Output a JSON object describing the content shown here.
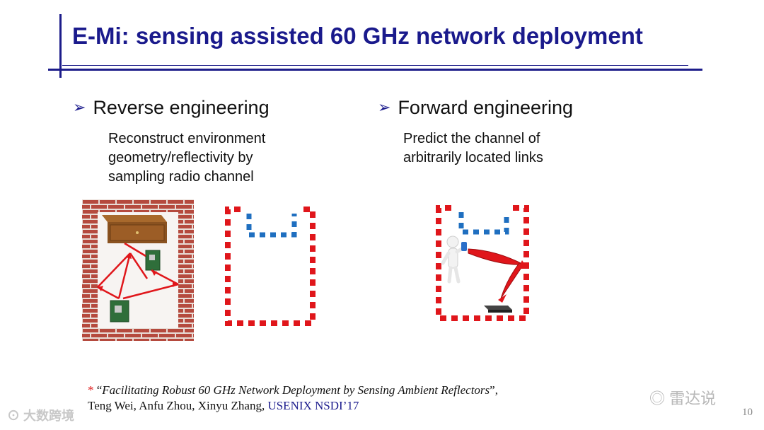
{
  "slide": {
    "title": "E-Mi: sensing assisted 60 GHz network deployment",
    "page_number": "10"
  },
  "left_column": {
    "heading": "Reverse engineering",
    "description": [
      "Reconstruct environment",
      "geometry/reflectivity by",
      "sampling radio channel"
    ]
  },
  "right_column": {
    "heading": "Forward engineering",
    "description": [
      "Predict the channel of",
      "arbitrarily located links"
    ]
  },
  "reference": {
    "marker": "*",
    "open_quote": "“",
    "paper_title": "Facilitating Robust 60 GHz Network Deployment by Sensing Ambient Reflectors",
    "close_quote": "”,",
    "authors": "Teng Wei, Anfu Zhou, Xinyu Zhang,",
    "venue": "USENIX NSDI’17"
  },
  "watermarks": {
    "left": "大数跨境",
    "right": "雷达说"
  },
  "colors": {
    "title": "#1a1a8c",
    "wall_red": "#e0161b",
    "reflector_blue": "#1f6fc0",
    "brick": "#b54a3e"
  },
  "icons": {
    "bullet": "arrowhead-bullet"
  }
}
